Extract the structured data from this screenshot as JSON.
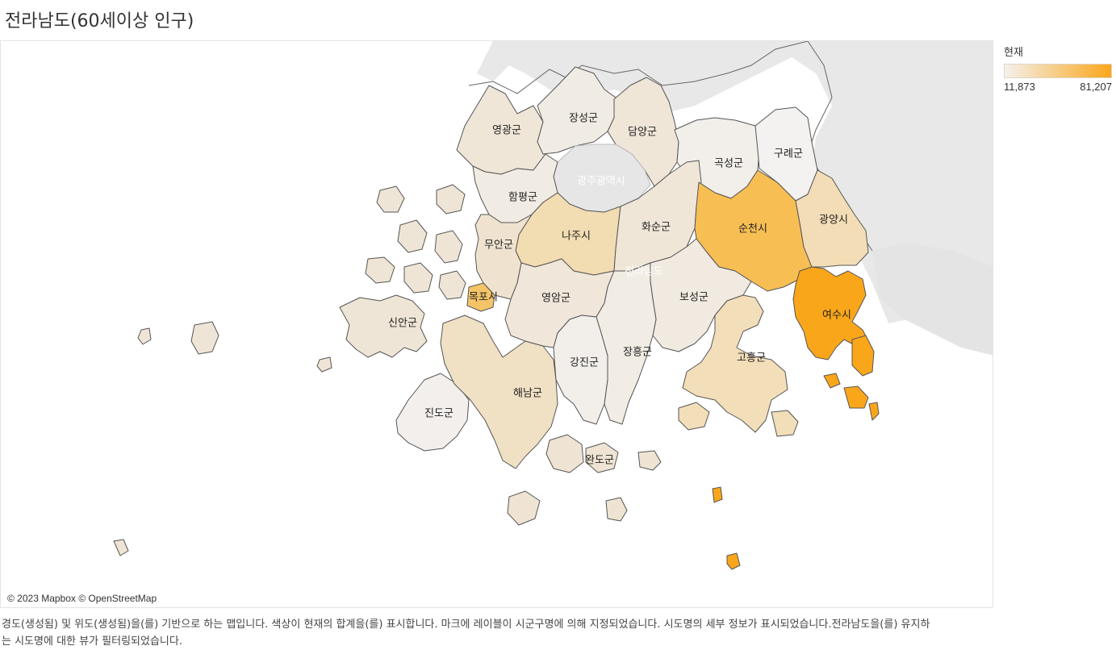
{
  "page": {
    "title": "전라남도(60세이상 인구)",
    "caption": "경도(생성됨) 및 위도(생성됨)을(를) 기반으로 하는 맵입니다. 색상이 현재의 합계을(를) 표시합니다. 마크에 레이블이 시군구명에 의해 지정되었습니다. 시도명의 세부 정보가 표시되었습니다.전라남도을(를) 유지하는 시도명에 대한 뷰가 필터링되었습니다.",
    "attribution": "© 2023 Mapbox © OpenStreetMap"
  },
  "legend": {
    "title": "현재",
    "min_label": "11,873",
    "max_label": "81,207",
    "color_low": "#f4f1ec",
    "color_high": "#faa61a"
  },
  "basemap": {
    "background_label": "전라남도",
    "gwangju_label": "광주광역시",
    "land_color": "#e8e8e8",
    "water_color": "#ffffff"
  },
  "regions": [
    {
      "name": "영광군",
      "color": "#efe6d8"
    },
    {
      "name": "장성군",
      "color": "#f1ece3"
    },
    {
      "name": "담양군",
      "color": "#efe6d8"
    },
    {
      "name": "곡성군",
      "color": "#f2efea"
    },
    {
      "name": "구례군",
      "color": "#f3f2f0"
    },
    {
      "name": "함평군",
      "color": "#f1ece3"
    },
    {
      "name": "광주광역시",
      "color": "#e6e6e6"
    },
    {
      "name": "화순군",
      "color": "#efe6d8"
    },
    {
      "name": "순천시",
      "color": "#f7be54"
    },
    {
      "name": "광양시",
      "color": "#f3ddb6"
    },
    {
      "name": "나주시",
      "color": "#f2dcb2"
    },
    {
      "name": "무안군",
      "color": "#efe3cf"
    },
    {
      "name": "목포시",
      "color": "#f5c468"
    },
    {
      "name": "영암군",
      "color": "#f0e7da"
    },
    {
      "name": "보성군",
      "color": "#f1eae0"
    },
    {
      "name": "여수시",
      "color": "#faa61a"
    },
    {
      "name": "신안군",
      "color": "#efe5d6"
    },
    {
      "name": "강진군",
      "color": "#f2efea"
    },
    {
      "name": "장흥군",
      "color": "#f1ece4"
    },
    {
      "name": "고흥군",
      "color": "#f2deb9"
    },
    {
      "name": "해남군",
      "color": "#f0e0c4"
    },
    {
      "name": "진도군",
      "color": "#f2efec"
    },
    {
      "name": "완도군",
      "color": "#efe4d3"
    }
  ]
}
